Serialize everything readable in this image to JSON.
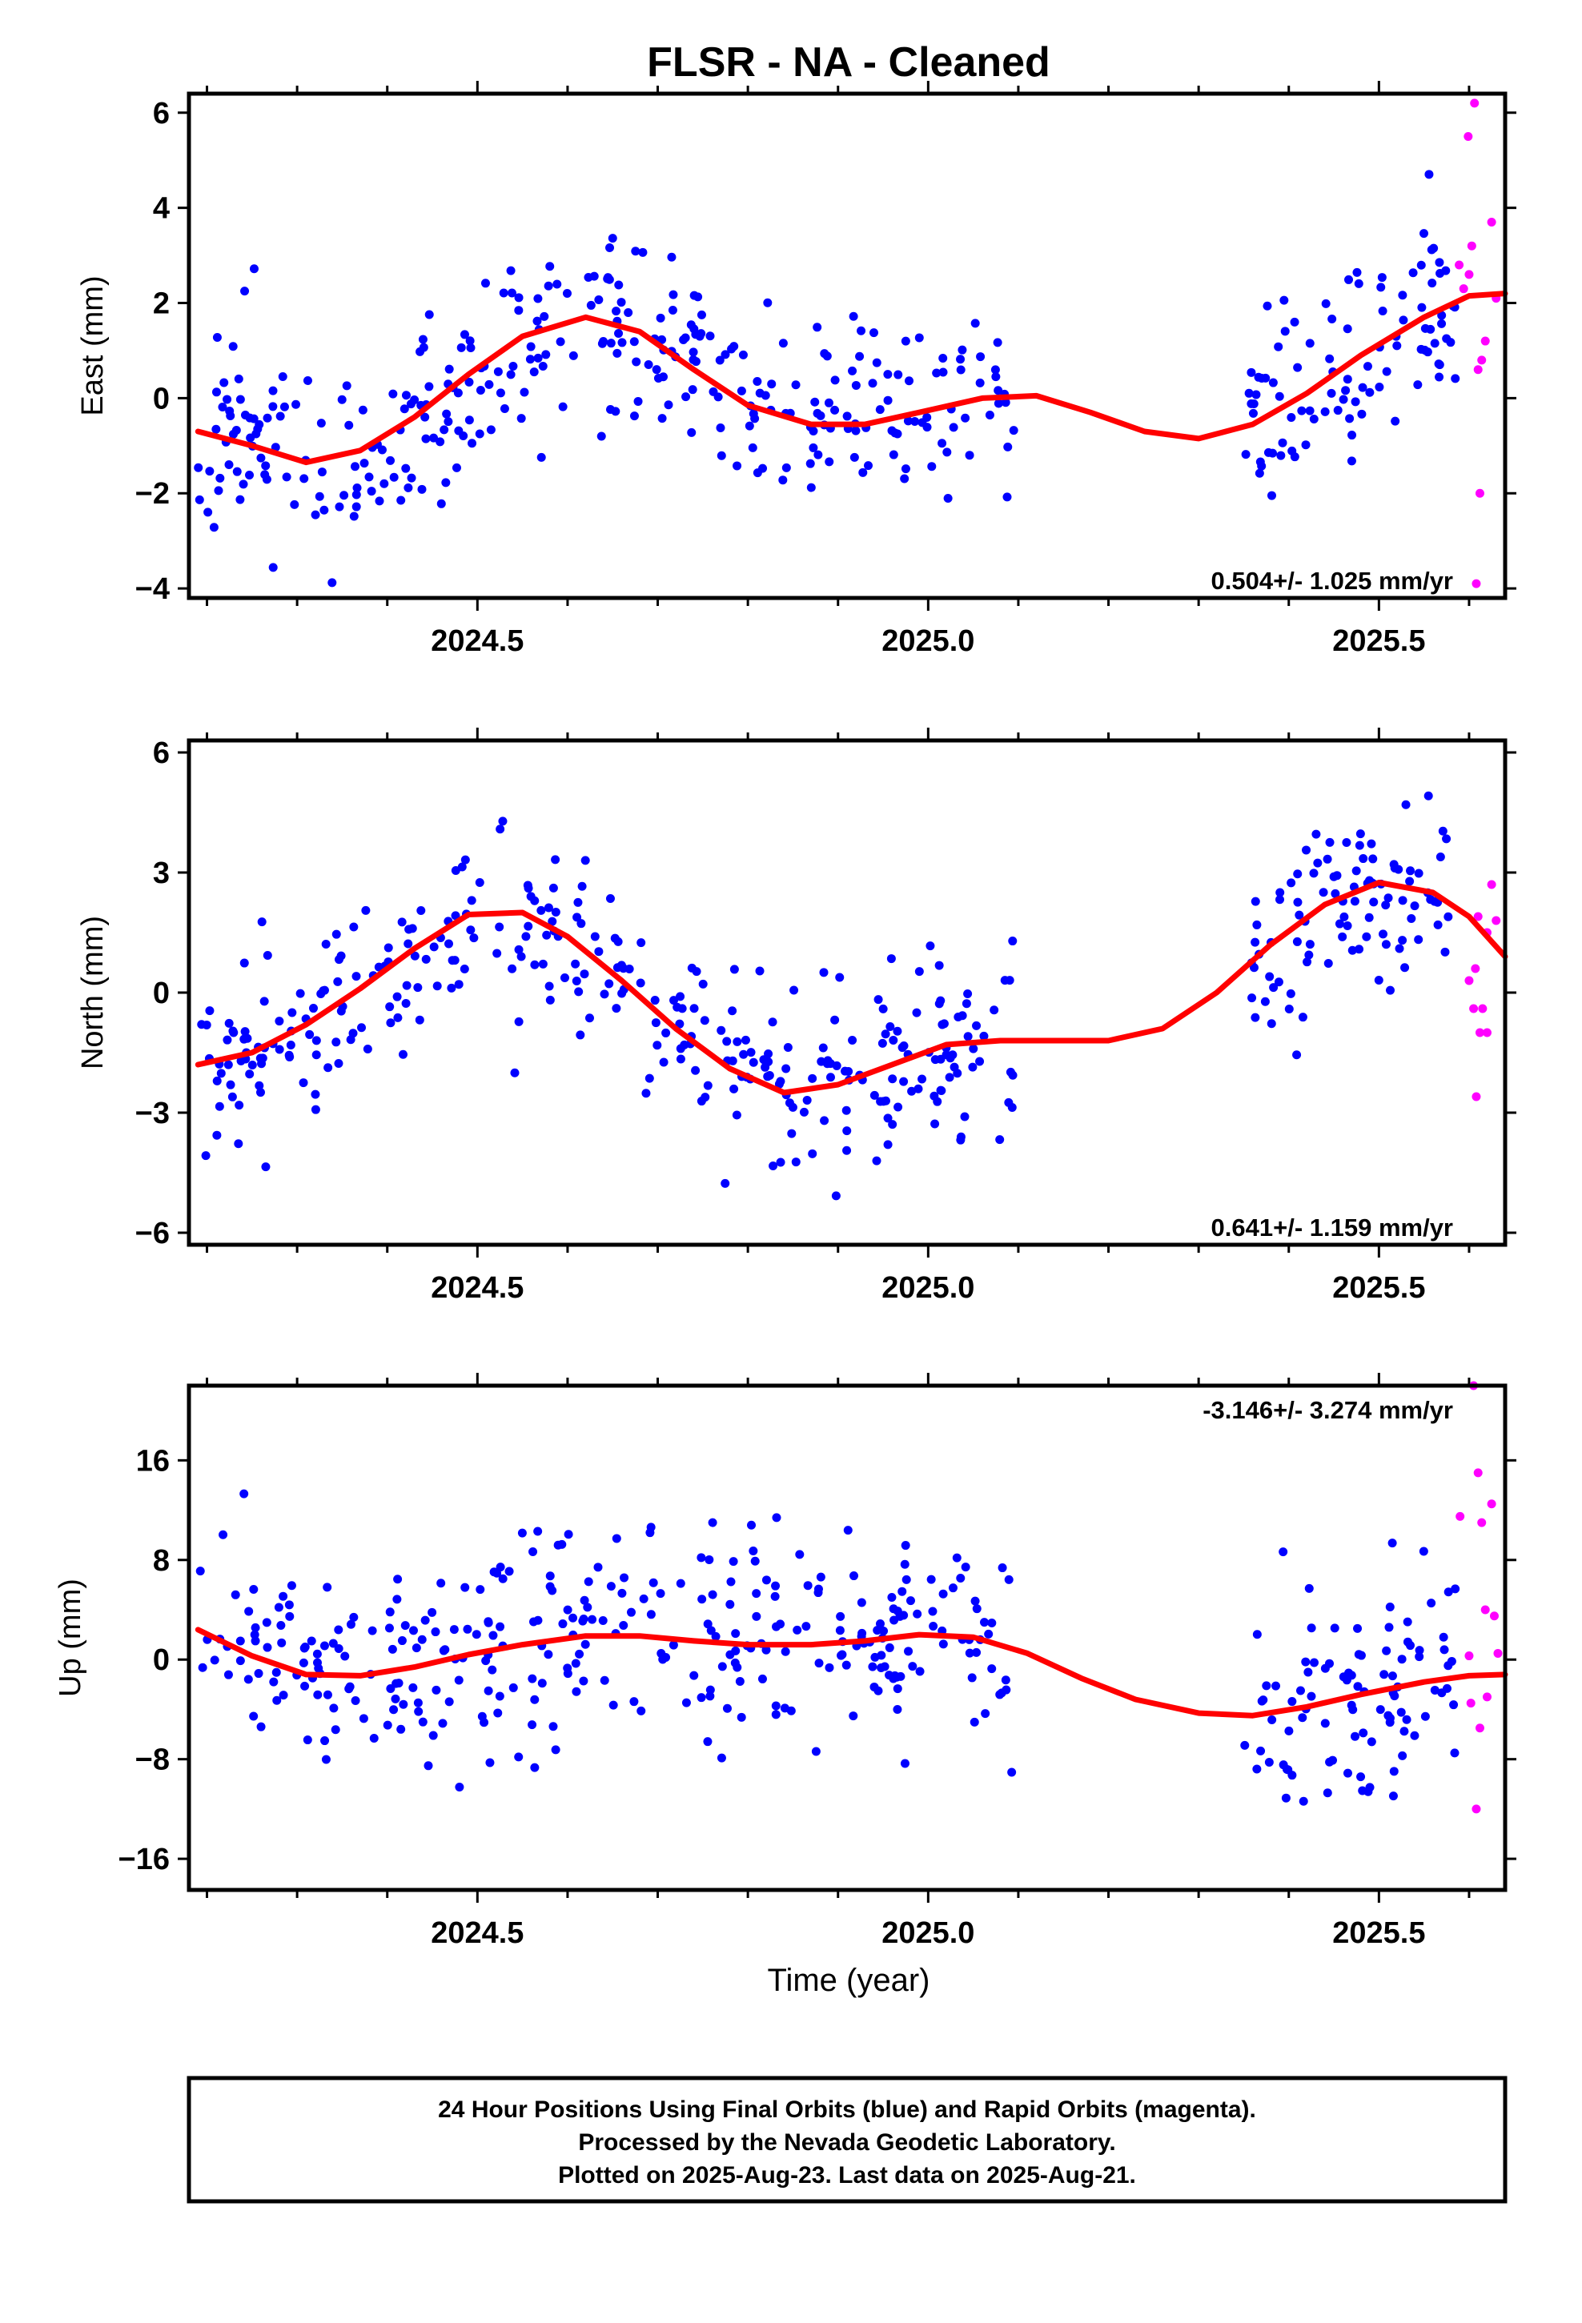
{
  "chart_data": {
    "type": "scatter",
    "title": "FLSR  - NA - Cleaned",
    "xlabel": "Time (year)",
    "xlim": [
      2024.18,
      2025.64
    ],
    "x_ticks": [
      "2024.5",
      "2025.0",
      "2025.5"
    ],
    "colors": {
      "final": "#0000ff",
      "rapid": "#ff00ff",
      "model": "#ff0000"
    },
    "panels": [
      {
        "name": "east",
        "ylabel": "East (mm)",
        "ylim": [
          -4.2,
          6.4
        ],
        "y_ticks": [
          "6",
          "4",
          "2",
          "0",
          "−2",
          "−4"
        ],
        "rate_label": "0.504+/- 1.025 mm/yr",
        "final_seed": 11,
        "final_scale": 1.05,
        "rapid": [
          [
            2025.606,
            6.2
          ],
          [
            2025.599,
            5.5
          ],
          [
            2025.603,
            3.2
          ],
          [
            2025.589,
            2.8
          ],
          [
            2025.594,
            2.3
          ],
          [
            2025.625,
            3.7
          ],
          [
            2025.63,
            2.1
          ],
          [
            2025.618,
            1.2
          ],
          [
            2025.614,
            0.8
          ],
          [
            2025.61,
            0.6
          ],
          [
            2025.612,
            -2.0
          ],
          [
            2025.608,
            -3.9
          ],
          [
            2025.6,
            2.6
          ]
        ],
        "model": [
          [
            2024.19,
            -0.7
          ],
          [
            2024.25,
            -1.0
          ],
          [
            2024.31,
            -1.35
          ],
          [
            2024.37,
            -1.1
          ],
          [
            2024.43,
            -0.4
          ],
          [
            2024.49,
            0.5
          ],
          [
            2024.55,
            1.3
          ],
          [
            2024.62,
            1.7
          ],
          [
            2024.68,
            1.4
          ],
          [
            2024.74,
            0.6
          ],
          [
            2024.8,
            -0.15
          ],
          [
            2024.87,
            -0.55
          ],
          [
            2024.93,
            -0.55
          ],
          [
            2024.99,
            -0.3
          ],
          [
            2025.06,
            0.0
          ],
          [
            2025.12,
            0.05
          ],
          [
            2025.18,
            -0.3
          ],
          [
            2025.24,
            -0.7
          ],
          [
            2025.3,
            -0.85
          ],
          [
            2025.36,
            -0.55
          ],
          [
            2025.42,
            0.1
          ],
          [
            2025.48,
            0.9
          ],
          [
            2025.55,
            1.7
          ],
          [
            2025.6,
            2.15
          ],
          [
            2025.64,
            2.2
          ]
        ]
      },
      {
        "name": "north",
        "ylabel": "North (mm)",
        "ylim": [
          -6.3,
          6.3
        ],
        "y_ticks": [
          "6",
          "3",
          "0",
          "−3",
          "−6"
        ],
        "rate_label": "0.641+/- 1.159 mm/yr",
        "final_seed": 23,
        "final_scale": 1.1,
        "rapid": [
          [
            2025.61,
            1.9
          ],
          [
            2025.62,
            1.5
          ],
          [
            2025.625,
            2.7
          ],
          [
            2025.63,
            1.8
          ],
          [
            2025.6,
            0.3
          ],
          [
            2025.607,
            0.6
          ],
          [
            2025.615,
            -0.4
          ],
          [
            2025.605,
            -0.4
          ],
          [
            2025.62,
            -1.0
          ],
          [
            2025.612,
            -1.0
          ],
          [
            2025.608,
            -2.6
          ]
        ],
        "model": [
          [
            2024.19,
            -1.8
          ],
          [
            2024.25,
            -1.5
          ],
          [
            2024.31,
            -0.8
          ],
          [
            2024.37,
            0.1
          ],
          [
            2024.43,
            1.1
          ],
          [
            2024.49,
            1.95
          ],
          [
            2024.55,
            2.0
          ],
          [
            2024.6,
            1.4
          ],
          [
            2024.66,
            0.3
          ],
          [
            2024.72,
            -0.9
          ],
          [
            2024.78,
            -1.9
          ],
          [
            2024.84,
            -2.5
          ],
          [
            2024.9,
            -2.3
          ],
          [
            2024.96,
            -1.8
          ],
          [
            2025.02,
            -1.3
          ],
          [
            2025.08,
            -1.2
          ],
          [
            2025.14,
            -1.2
          ],
          [
            2025.2,
            -1.2
          ],
          [
            2025.26,
            -0.9
          ],
          [
            2025.32,
            0.0
          ],
          [
            2025.38,
            1.2
          ],
          [
            2025.44,
            2.2
          ],
          [
            2025.5,
            2.75
          ],
          [
            2025.56,
            2.5
          ],
          [
            2025.6,
            1.9
          ],
          [
            2025.64,
            0.9
          ]
        ]
      },
      {
        "name": "up",
        "ylabel": "Up (mm)",
        "ylim": [
          -18.5,
          22
        ],
        "y_ticks": [
          "16",
          "8",
          "0",
          "−8",
          "−16"
        ],
        "rate_label": "-3.146+/- 3.274 mm/yr",
        "final_seed": 37,
        "final_scale": 4.2,
        "rapid": [
          [
            2025.605,
            22.0
          ],
          [
            2025.61,
            15.0
          ],
          [
            2025.614,
            11.0
          ],
          [
            2025.625,
            12.5
          ],
          [
            2025.59,
            11.5
          ],
          [
            2025.618,
            4.0
          ],
          [
            2025.628,
            3.5
          ],
          [
            2025.632,
            0.5
          ],
          [
            2025.6,
            0.3
          ],
          [
            2025.602,
            -3.5
          ],
          [
            2025.62,
            -3.0
          ],
          [
            2025.612,
            -5.5
          ],
          [
            2025.608,
            -12.0
          ]
        ],
        "model": [
          [
            2024.19,
            2.4
          ],
          [
            2024.25,
            0.3
          ],
          [
            2024.31,
            -1.2
          ],
          [
            2024.37,
            -1.3
          ],
          [
            2024.43,
            -0.6
          ],
          [
            2024.49,
            0.4
          ],
          [
            2024.55,
            1.2
          ],
          [
            2024.62,
            1.9
          ],
          [
            2024.68,
            1.9
          ],
          [
            2024.74,
            1.5
          ],
          [
            2024.8,
            1.2
          ],
          [
            2024.87,
            1.2
          ],
          [
            2024.93,
            1.5
          ],
          [
            2024.99,
            2.0
          ],
          [
            2025.05,
            1.8
          ],
          [
            2025.11,
            0.5
          ],
          [
            2025.17,
            -1.5
          ],
          [
            2025.23,
            -3.2
          ],
          [
            2025.3,
            -4.3
          ],
          [
            2025.36,
            -4.5
          ],
          [
            2025.42,
            -3.8
          ],
          [
            2025.48,
            -2.8
          ],
          [
            2025.55,
            -1.8
          ],
          [
            2025.6,
            -1.3
          ],
          [
            2025.64,
            -1.2
          ]
        ]
      }
    ],
    "footer": [
      "24 Hour Positions Using Final Orbits (blue) and Rapid Orbits (magenta).",
      "Processed by the Nevada Geodetic Laboratory.",
      "Plotted on 2025-Aug-23. Last data on 2025-Aug-21."
    ]
  }
}
